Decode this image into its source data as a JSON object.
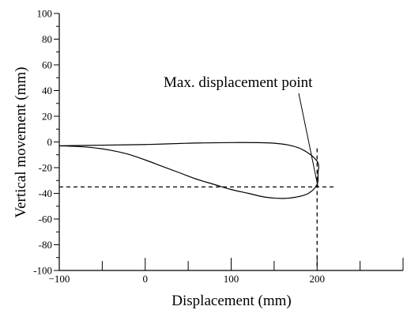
{
  "chart_data": {
    "type": "line",
    "title": "",
    "xlabel": "Displacement (mm)",
    "ylabel": "Vertical movement (mm)",
    "xlim": [
      -100,
      300
    ],
    "ylim": [
      -100,
      100
    ],
    "x_tick_labels": [
      "−100",
      "0",
      "100",
      "200"
    ],
    "x_tick_values": [
      -100,
      0,
      100,
      200
    ],
    "y_tick_labels": [
      "100",
      "80",
      "60",
      "40",
      "20",
      "0",
      "-20",
      "-40",
      "-60",
      "-80",
      "-100"
    ],
    "y_tick_values": [
      100,
      80,
      60,
      40,
      20,
      0,
      -20,
      -40,
      -60,
      -80,
      -100
    ],
    "grid": false,
    "series": [
      {
        "x": [
          -100,
          -50,
          0,
          50,
          100,
          150,
          180,
          200,
          201,
          200,
          190,
          175,
          160,
          140,
          120,
          100,
          80,
          60,
          40,
          20,
          0,
          -20,
          -40,
          -60,
          -80,
          -100
        ],
        "y": [
          -3,
          -2.5,
          -2,
          -1,
          -0.5,
          -1,
          -5,
          -15,
          -25,
          -33,
          -40,
          -43,
          -44,
          -43,
          -40,
          -37,
          -33,
          -29,
          -24,
          -19,
          -14,
          -9.5,
          -6.5,
          -4.5,
          -3.5,
          -3
        ]
      }
    ],
    "reference_lines": {
      "vertical_x": 200,
      "horizontal_y": -35
    },
    "annotations": [
      {
        "text": "Max. displacement point",
        "x": 201,
        "y": -35
      }
    ]
  }
}
